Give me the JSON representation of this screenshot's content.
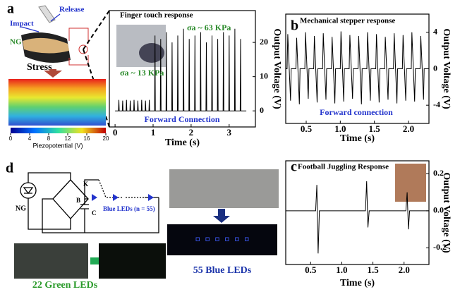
{
  "chart_data": [
    {
      "type": "line",
      "title": "Finger touch response",
      "annotations": [
        "σa ~ 63 KPa",
        "σa ~ 13 KPa",
        "Forward Connection"
      ],
      "xlabel": "Time (s)",
      "ylabel": "Output Voltage (V)",
      "color": "#000000",
      "x": [
        0,
        0.09,
        0.1,
        0.11,
        0.19,
        0.2,
        0.21,
        0.29,
        0.3,
        0.31,
        0.39,
        0.4,
        0.41,
        0.49,
        0.5,
        0.51,
        0.59,
        0.6,
        0.61,
        0.69,
        0.7,
        0.71,
        0.79,
        0.8,
        0.81,
        0.89,
        0.9,
        0.91,
        1.04,
        1.05,
        1.06,
        1.19,
        1.2,
        1.21,
        1.34,
        1.35,
        1.36,
        1.49,
        1.5,
        1.51,
        1.64,
        1.65,
        1.66,
        1.79,
        1.8,
        1.81,
        1.94,
        1.95,
        1.96,
        2.09,
        2.1,
        2.11,
        2.24,
        2.25,
        2.26,
        2.39,
        2.4,
        2.41,
        2.54,
        2.55,
        2.56,
        2.69,
        2.7,
        2.71,
        2.84,
        2.85,
        2.86,
        2.99,
        3.0,
        3.01,
        3.14,
        3.15,
        3.16,
        3.29,
        3.3,
        3.31,
        3.45
      ],
      "values": [
        0,
        0,
        3.2,
        0,
        0,
        3,
        0,
        0,
        3.2,
        0,
        0,
        3,
        0,
        0,
        3.2,
        0,
        0,
        3,
        0,
        0,
        3.2,
        0,
        0,
        3,
        0,
        0,
        3.2,
        0,
        0,
        22,
        0,
        0,
        21,
        0,
        0,
        23,
        0,
        0,
        20,
        0,
        0,
        22,
        0,
        0,
        24,
        0,
        0,
        21,
        0,
        0,
        22,
        0,
        0,
        23,
        0,
        0,
        20,
        0,
        0,
        22,
        0,
        0,
        21,
        0,
        0,
        23,
        0,
        0,
        22,
        0,
        0,
        24,
        0,
        0,
        21,
        0,
        0
      ],
      "xlim": [
        -0.15,
        3.69
      ],
      "ylim": [
        -4.7,
        29.3
      ],
      "xticks": [
        0,
        1,
        2,
        3
      ],
      "yticks": [
        0,
        10,
        20
      ]
    },
    {
      "type": "line",
      "title": "Mechanical stepper response",
      "annotations": [
        "Forward connection"
      ],
      "xlabel": "Time (s)",
      "ylabel": "Output Voltage (V)",
      "color": "#000000",
      "x": [
        0.2,
        0.22,
        0.23,
        0.27,
        0.28,
        0.35,
        0.36,
        0.4,
        0.41,
        0.48,
        0.49,
        0.53,
        0.54,
        0.61,
        0.62,
        0.66,
        0.67,
        0.74,
        0.75,
        0.79,
        0.8,
        0.87,
        0.88,
        0.92,
        0.93,
        1.0,
        1.01,
        1.05,
        1.06,
        1.13,
        1.14,
        1.18,
        1.19,
        1.26,
        1.27,
        1.31,
        1.32,
        1.39,
        1.4,
        1.44,
        1.45,
        1.52,
        1.53,
        1.57,
        1.58,
        1.65,
        1.66,
        1.7,
        1.71,
        1.78,
        1.79,
        1.83,
        1.84,
        1.91,
        1.92,
        1.96,
        1.97,
        2.04,
        2.05,
        2.09,
        2.1,
        2.17,
        2.18,
        2.22,
        2.23,
        2.3
      ],
      "values": [
        0,
        0,
        3.8,
        -3.5,
        0,
        0,
        3.4,
        -3.9,
        0,
        0,
        4.0,
        -3.3,
        0,
        0,
        3.6,
        -3.7,
        0,
        0,
        3.9,
        -3.4,
        0,
        0,
        3.5,
        -3.8,
        0,
        0,
        4.1,
        -3.6,
        0,
        0,
        3.7,
        -3.3,
        0,
        0,
        3.6,
        -3.9,
        0,
        0,
        4.0,
        -3.5,
        0,
        0,
        3.8,
        -3.7,
        0,
        0,
        3.5,
        -3.4,
        0,
        0,
        3.9,
        -3.8,
        0,
        0,
        3.7,
        -3.5,
        0,
        0,
        4.0,
        -3.6,
        0,
        0,
        3.6,
        -3.4,
        0,
        0
      ],
      "xlim": [
        0.2,
        2.3
      ],
      "ylim": [
        -6,
        6
      ],
      "xticks": [
        0.5,
        {
          "value": 1,
          "label": "1.0"
        },
        1.5,
        {
          "value": 2,
          "label": "2.0"
        }
      ],
      "yticks": [
        4,
        0,
        -4
      ]
    },
    {
      "type": "line",
      "title": "Football Juggling Response",
      "annotations": [],
      "xlabel": "Time (s)",
      "ylabel": "Output Voltage (V)",
      "color": "#000000",
      "x": [
        0.1,
        0.58,
        0.6,
        0.62,
        0.64,
        1.38,
        1.4,
        1.42,
        1.44,
        2.03,
        2.05,
        2.07,
        2.09,
        2.4
      ],
      "values": [
        0,
        0,
        0.14,
        -0.23,
        0,
        0,
        0.16,
        -0.09,
        0,
        0,
        0.1,
        -0.1,
        0,
        0
      ],
      "xlim": [
        0.1,
        2.4
      ],
      "ylim": [
        -0.29,
        0.27
      ],
      "xticks": [
        0.5,
        {
          "value": 1,
          "label": "1.0"
        },
        1.5,
        {
          "value": 2,
          "label": "2.0"
        }
      ],
      "yticks": [
        0.2,
        {
          "value": 0,
          "label": "0.0"
        },
        -0.2
      ]
    }
  ],
  "labels": {
    "a": "a",
    "b": "b",
    "c": "c",
    "d": "d"
  },
  "diagram_a": {
    "release": "Release",
    "impact": "Impact",
    "ng": "NG",
    "stress": "Stress"
  },
  "colorbar": {
    "ticks": [
      0,
      4,
      8,
      12,
      16,
      20
    ],
    "range": [
      0,
      20
    ],
    "label": "Piezopotential (V)"
  },
  "circuit": {
    "k": "K",
    "b": "B",
    "c": "C",
    "ng": "NG",
    "leds": "Blue LEDs (n = 55)"
  },
  "photos": {
    "blue": "55 Blue LEDs",
    "green": "22 Green LEDs"
  }
}
